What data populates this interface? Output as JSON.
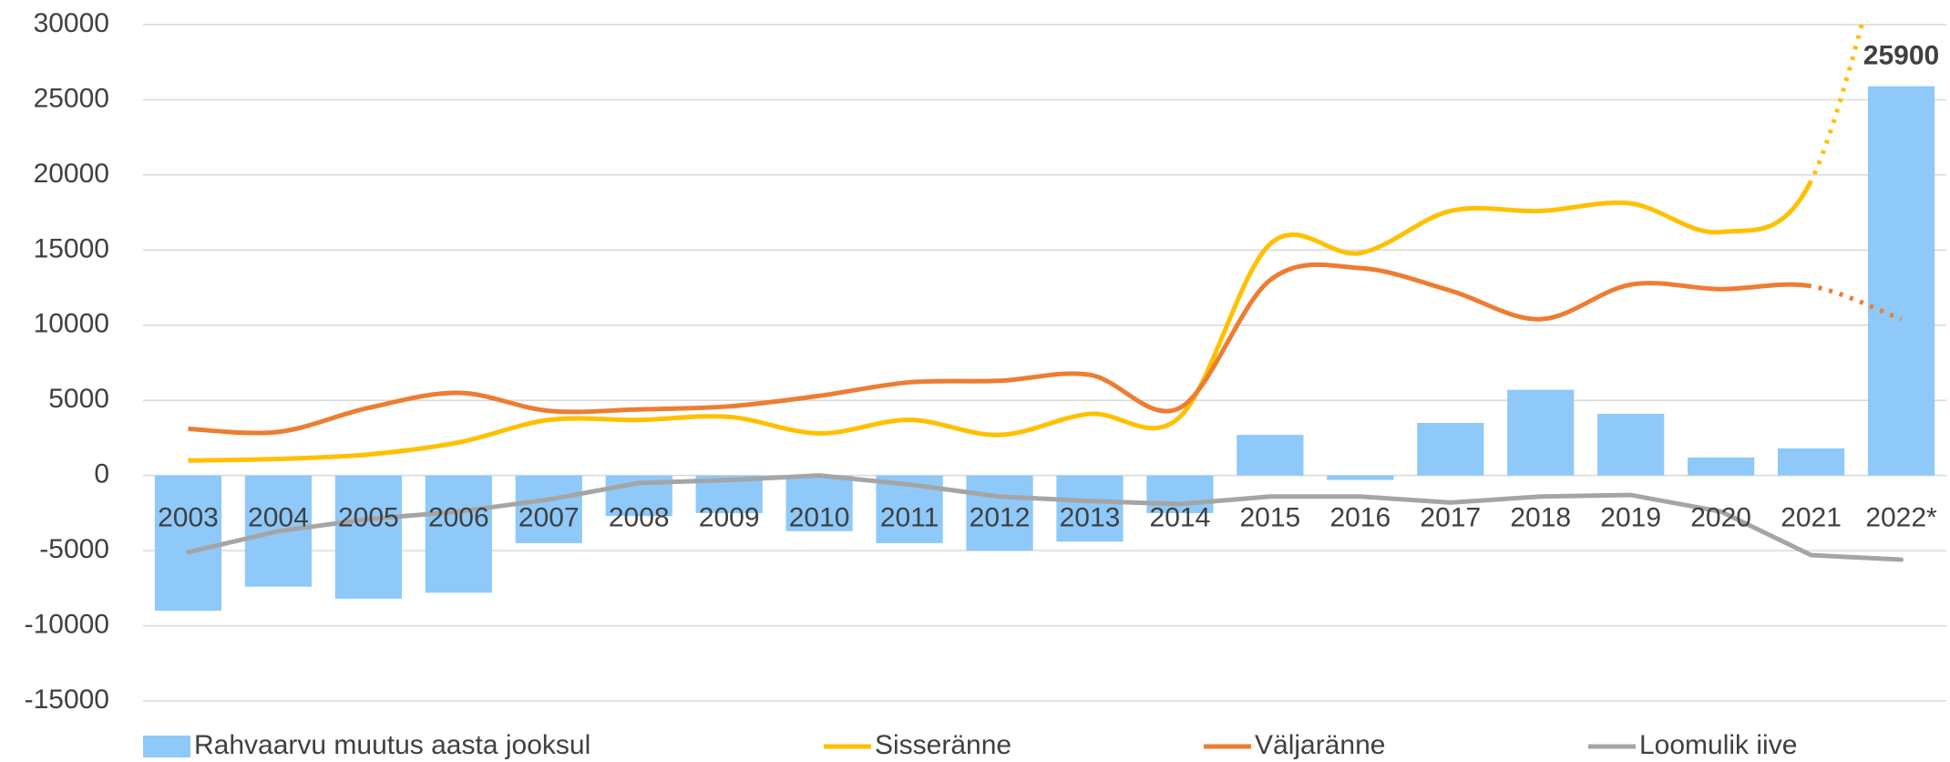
{
  "chart_data": {
    "type": "bar_line",
    "categories": [
      "2003",
      "2004",
      "2005",
      "2006",
      "2007",
      "2008",
      "2009",
      "2010",
      "2011",
      "2012",
      "2013",
      "2014",
      "2015",
      "2016",
      "2017",
      "2018",
      "2019",
      "2020",
      "2021",
      "2022*"
    ],
    "series": [
      {
        "name": "Rahvaarvu muutus aasta jooksul",
        "type": "bar",
        "color": "#8ec9f9",
        "label_last": true,
        "values": [
          -9000,
          -7400,
          -8200,
          -7800,
          -4500,
          -2700,
          -2500,
          -3700,
          -4500,
          -5000,
          -4400,
          -2500,
          2700,
          -300,
          3500,
          5700,
          4100,
          1200,
          1800,
          25900
        ]
      },
      {
        "name": "Sisseränne",
        "type": "line",
        "color": "#ffc000",
        "smooth": true,
        "dotted_last_segment": true,
        "values": [
          1000,
          1100,
          1400,
          2200,
          3700,
          3700,
          3900,
          2800,
          3700,
          2700,
          4100,
          3900,
          15400,
          14800,
          17600,
          17600,
          18100,
          16200,
          19600,
          40000
        ]
      },
      {
        "name": "Väljaränne",
        "type": "line",
        "color": "#ed7d31",
        "smooth": true,
        "dotted_last_segment": true,
        "values": [
          3100,
          2900,
          4500,
          5500,
          4300,
          4400,
          4600,
          5300,
          6200,
          6300,
          6700,
          4500,
          13000,
          13800,
          12300,
          10400,
          12700,
          12400,
          12600,
          10400
        ]
      },
      {
        "name": "Loomulik iive",
        "type": "line",
        "color": "#a5a5a5",
        "smooth": false,
        "dotted_last_segment": false,
        "values": [
          -5100,
          -3700,
          -2900,
          -2400,
          -1600,
          -500,
          -300,
          0,
          -600,
          -1400,
          -1700,
          -1900,
          -1400,
          -1400,
          -1800,
          -1400,
          -1300,
          -2400,
          -5300,
          -5600
        ]
      }
    ],
    "ylim": [
      -15000,
      30000
    ],
    "yticks": [
      -15000,
      -10000,
      -5000,
      0,
      5000,
      10000,
      15000,
      20000,
      25000,
      30000
    ],
    "grid": true,
    "legend": "bottom"
  }
}
